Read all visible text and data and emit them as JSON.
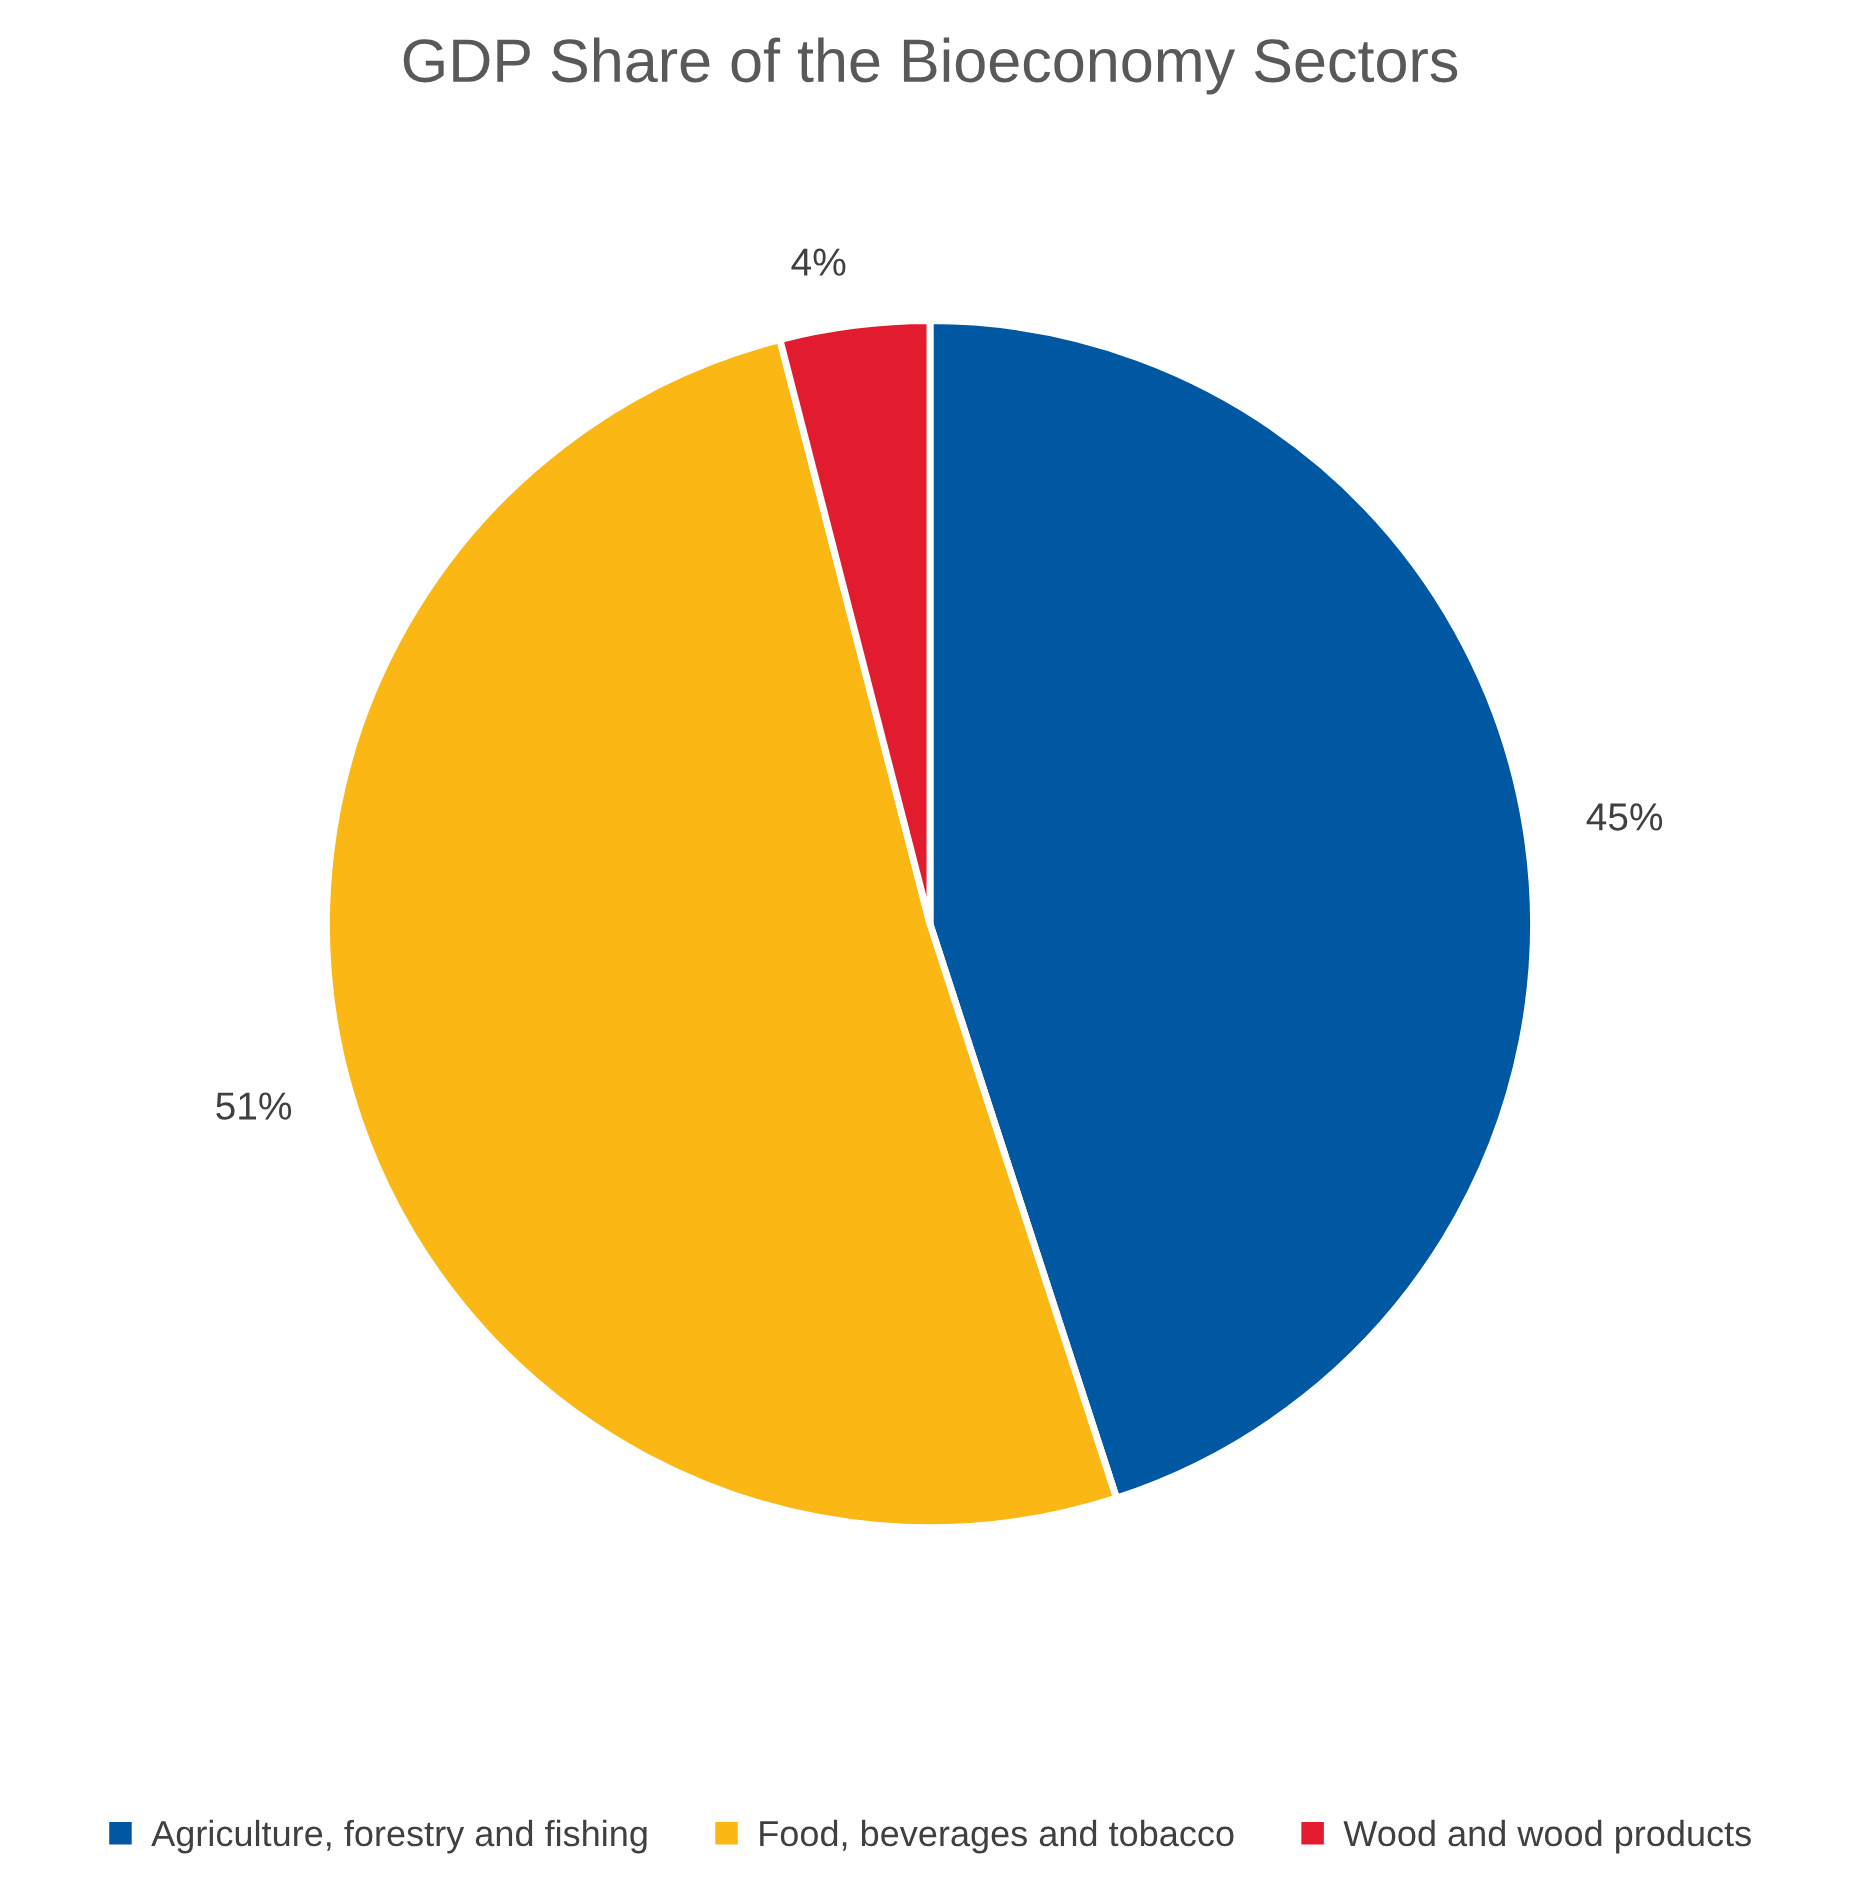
{
  "chart_data": {
    "type": "pie",
    "title": "GDP Share of the Bioeconomy Sectors",
    "categories": [
      "Agriculture, forestry and fishing",
      "Food, beverages and tobacco",
      "Wood and wood products"
    ],
    "values": [
      45,
      51,
      4
    ],
    "value_labels": [
      "45%",
      "51%",
      "4%"
    ],
    "colors": [
      "#0058a3",
      "#fbb713",
      "#e31b2e"
    ],
    "legend": "bottom"
  }
}
